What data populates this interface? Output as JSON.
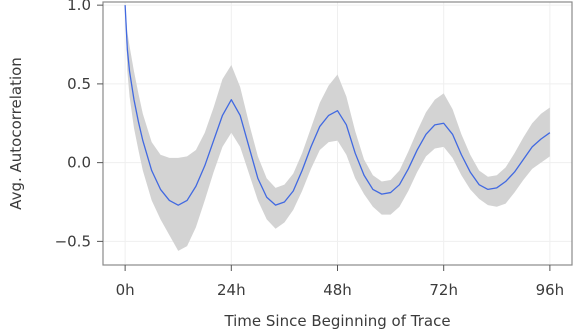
{
  "chart_data": {
    "type": "line",
    "title": "",
    "xlabel": "Time Since Beginning of Trace",
    "ylabel": "Avg. Autocorrelation",
    "xlim": [
      -5,
      101
    ],
    "ylim": [
      -0.65,
      1.02
    ],
    "x_ticks": [
      0,
      24,
      48,
      72,
      96
    ],
    "x_tick_labels": [
      "0h",
      "24h",
      "48h",
      "72h",
      "96h"
    ],
    "y_ticks": [
      -0.5,
      0.0,
      0.5,
      1.0
    ],
    "y_tick_labels": [
      "−0.5",
      "0.0",
      "0.5",
      "1.0"
    ],
    "grid": true,
    "series": [
      {
        "kind": "mean",
        "color": "#4169e1",
        "x": [
          0,
          0.5,
          1,
          2,
          3,
          4,
          6,
          8,
          10,
          12,
          14,
          16,
          18,
          20,
          22,
          24,
          26,
          28,
          30,
          32,
          34,
          36,
          38,
          40,
          42,
          44,
          46,
          48,
          50,
          52,
          54,
          56,
          58,
          60,
          62,
          64,
          66,
          68,
          70,
          72,
          74,
          76,
          78,
          80,
          82,
          84,
          86,
          88,
          90,
          92,
          94,
          96
        ],
        "y": [
          1.0,
          0.72,
          0.58,
          0.4,
          0.26,
          0.14,
          -0.05,
          -0.17,
          -0.24,
          -0.27,
          -0.24,
          -0.15,
          -0.02,
          0.14,
          0.3,
          0.4,
          0.3,
          0.1,
          -0.1,
          -0.22,
          -0.27,
          -0.25,
          -0.18,
          -0.05,
          0.1,
          0.23,
          0.3,
          0.33,
          0.24,
          0.06,
          -0.08,
          -0.17,
          -0.2,
          -0.19,
          -0.14,
          -0.04,
          0.08,
          0.18,
          0.24,
          0.25,
          0.18,
          0.05,
          -0.06,
          -0.14,
          -0.17,
          -0.16,
          -0.12,
          -0.06,
          0.02,
          0.1,
          0.15,
          0.19
        ]
      },
      {
        "kind": "band",
        "color": "#d3d3d3",
        "x": [
          0,
          0.5,
          1,
          2,
          3,
          4,
          6,
          8,
          10,
          12,
          14,
          16,
          18,
          20,
          22,
          24,
          26,
          28,
          30,
          32,
          34,
          36,
          38,
          40,
          42,
          44,
          46,
          48,
          50,
          52,
          54,
          56,
          58,
          60,
          62,
          64,
          66,
          68,
          70,
          72,
          74,
          76,
          78,
          80,
          82,
          84,
          86,
          88,
          90,
          92,
          94,
          96
        ],
        "upper": [
          1.0,
          0.83,
          0.74,
          0.58,
          0.44,
          0.31,
          0.13,
          0.05,
          0.03,
          0.03,
          0.04,
          0.08,
          0.19,
          0.35,
          0.53,
          0.62,
          0.48,
          0.25,
          0.04,
          -0.1,
          -0.16,
          -0.14,
          -0.07,
          0.06,
          0.22,
          0.38,
          0.49,
          0.56,
          0.42,
          0.2,
          0.02,
          -0.08,
          -0.12,
          -0.11,
          -0.05,
          0.07,
          0.2,
          0.32,
          0.4,
          0.44,
          0.34,
          0.18,
          0.05,
          -0.05,
          -0.09,
          -0.08,
          -0.03,
          0.06,
          0.16,
          0.25,
          0.31,
          0.35
        ],
        "lower": [
          1.0,
          0.58,
          0.42,
          0.22,
          0.08,
          -0.05,
          -0.24,
          -0.36,
          -0.46,
          -0.56,
          -0.53,
          -0.41,
          -0.24,
          -0.06,
          0.1,
          0.19,
          0.1,
          -0.07,
          -0.24,
          -0.36,
          -0.42,
          -0.38,
          -0.3,
          -0.18,
          -0.04,
          0.08,
          0.13,
          0.14,
          0.05,
          -0.1,
          -0.2,
          -0.28,
          -0.33,
          -0.33,
          -0.28,
          -0.18,
          -0.06,
          0.04,
          0.09,
          0.1,
          0.03,
          -0.08,
          -0.17,
          -0.23,
          -0.27,
          -0.28,
          -0.26,
          -0.19,
          -0.11,
          -0.04,
          0.0,
          0.04
        ]
      }
    ]
  }
}
